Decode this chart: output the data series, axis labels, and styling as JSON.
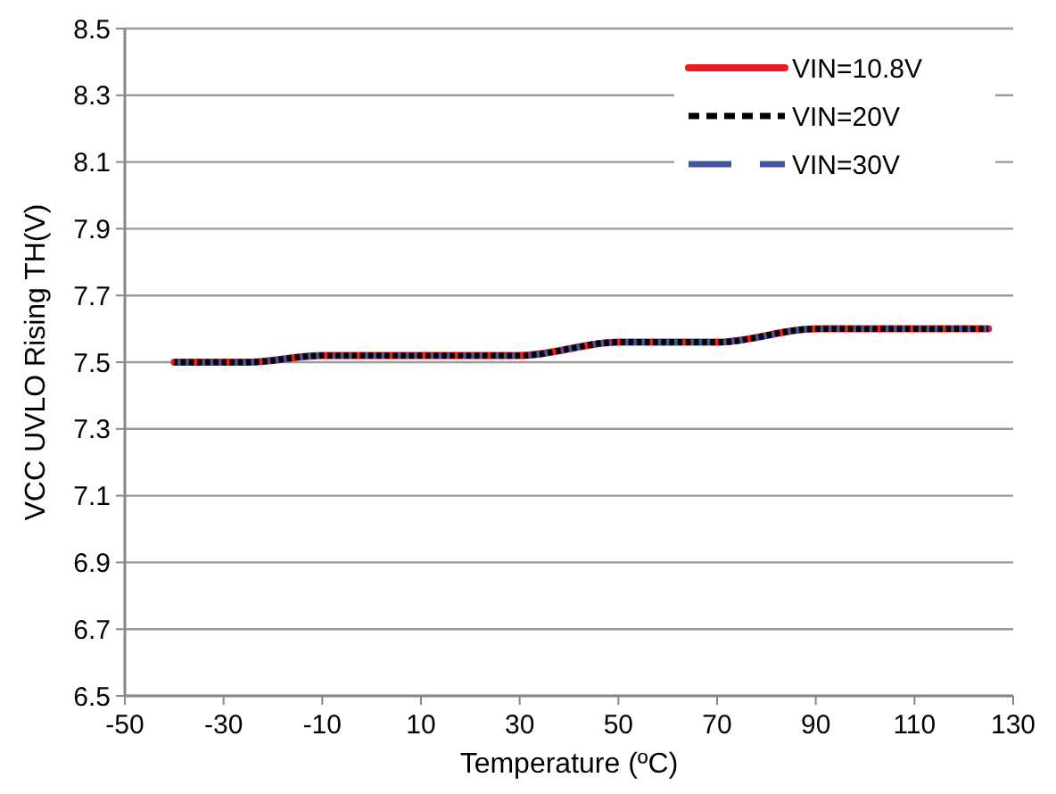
{
  "chart_data": {
    "type": "line",
    "xlabel": "Temperature (ºC)",
    "ylabel": "VCC UVLO Rising TH(V)",
    "x": [
      -40,
      -25,
      -10,
      10,
      30,
      50,
      70,
      90,
      110,
      125
    ],
    "series": [
      {
        "name": "VIN=10.8V",
        "color": "#ed1c24",
        "line_style": "solid",
        "values": [
          7.5,
          7.5,
          7.52,
          7.52,
          7.52,
          7.56,
          7.56,
          7.6,
          7.6,
          7.6
        ]
      },
      {
        "name": "VIN=20V",
        "color": "#000000",
        "line_style": "dotted",
        "values": [
          7.5,
          7.5,
          7.52,
          7.52,
          7.52,
          7.56,
          7.56,
          7.6,
          7.6,
          7.6
        ]
      },
      {
        "name": "VIN=30V",
        "color": "#4054a0",
        "line_style": "dashed",
        "values": [
          7.5,
          7.5,
          7.52,
          7.52,
          7.52,
          7.56,
          7.56,
          7.6,
          7.6,
          7.6
        ]
      }
    ],
    "xlim": [
      -50,
      130
    ],
    "xticks": [
      -50,
      -30,
      -10,
      10,
      30,
      50,
      70,
      90,
      110,
      130
    ],
    "ylim": [
      6.5,
      8.5
    ],
    "yticks": [
      {
        "value": 6.5,
        "label": "6.5"
      },
      {
        "value": 6.7,
        "label": "6.7"
      },
      {
        "value": 6.9,
        "label": "6.9"
      },
      {
        "value": 7.1,
        "label": "7.1"
      },
      {
        "value": 7.3,
        "label": "7.3"
      },
      {
        "value": 7.5,
        "label": "7.5"
      },
      {
        "value": 7.7,
        "label": "7.7"
      },
      {
        "value": 7.9,
        "label": "7.9"
      },
      {
        "value": 8.1,
        "label": "8.1"
      },
      {
        "value": 8.3,
        "label": "8.3"
      },
      {
        "value": 8.5,
        "label": "8.5"
      }
    ],
    "grid": "y",
    "legend": "top right",
    "marker": "none"
  }
}
